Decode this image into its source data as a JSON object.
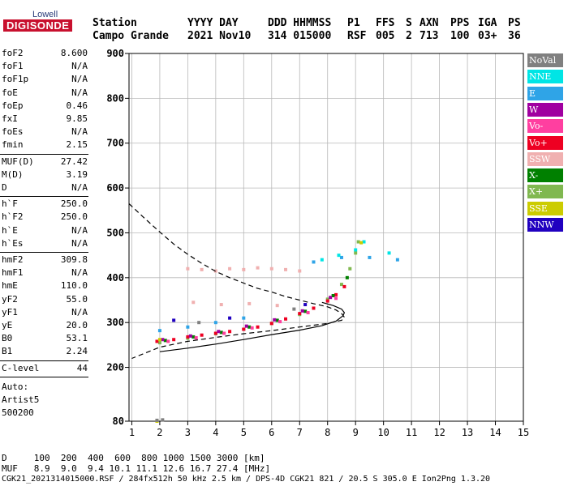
{
  "logo": {
    "top": "Lowell",
    "main": "DIGISONDE"
  },
  "header": {
    "labels": [
      "Station",
      "YYYY DAY",
      "DDD HHMMSS",
      "P1",
      "FFS",
      "S",
      "AXN",
      "PPS",
      "IGA",
      "PS"
    ],
    "values": [
      "Campo Grande",
      "2021 Nov10",
      "314 015000",
      "RSF",
      "005",
      "2",
      "713",
      "100",
      "03+",
      "36"
    ]
  },
  "params": {
    "group1": [
      {
        "label": "foF2",
        "value": "8.600"
      },
      {
        "label": "foF1",
        "value": "N/A"
      },
      {
        "label": "foF1p",
        "value": "N/A"
      },
      {
        "label": "foE",
        "value": "N/A"
      },
      {
        "label": "foEp",
        "value": "0.46"
      },
      {
        "label": "fxI",
        "value": "9.85"
      },
      {
        "label": "foEs",
        "value": "N/A"
      },
      {
        "label": "fmin",
        "value": "2.15"
      }
    ],
    "group2": [
      {
        "label": "MUF(D)",
        "value": "27.42"
      },
      {
        "label": "M(D)",
        "value": "3.19"
      },
      {
        "label": "D",
        "value": "N/A"
      }
    ],
    "group3": [
      {
        "label": "h`F",
        "value": "250.0"
      },
      {
        "label": "h`F2",
        "value": "250.0"
      },
      {
        "label": "h`E",
        "value": "N/A"
      },
      {
        "label": "h`Es",
        "value": "N/A"
      }
    ],
    "group4": [
      {
        "label": "hmF2",
        "value": "309.8"
      },
      {
        "label": "hmF1",
        "value": "N/A"
      },
      {
        "label": "hmE",
        "value": "110.0"
      },
      {
        "label": "yF2",
        "value": "55.0"
      },
      {
        "label": "yF1",
        "value": "N/A"
      },
      {
        "label": "yE",
        "value": "20.0"
      },
      {
        "label": "B0",
        "value": "53.1"
      },
      {
        "label": "B1",
        "value": "2.24"
      }
    ],
    "clevel": {
      "label": "C-level",
      "value": "44"
    },
    "auto": [
      "Auto:",
      "Artist5",
      "500200"
    ]
  },
  "legend": [
    {
      "label": "NoVal",
      "color": "#808080"
    },
    {
      "label": "NNE",
      "color": "#00e5e5"
    },
    {
      "label": "E",
      "color": "#2fa4e7"
    },
    {
      "label": "W",
      "color": "#a000a0"
    },
    {
      "label": "Vo-",
      "color": "#ff3fa0"
    },
    {
      "label": "Vo+",
      "color": "#ee0022"
    },
    {
      "label": "SSW",
      "color": "#f0b0b0"
    },
    {
      "label": "X-",
      "color": "#008000"
    },
    {
      "label": "X+",
      "color": "#80b850"
    },
    {
      "label": "SSE",
      "color": "#cccc00"
    },
    {
      "label": "NNW",
      "color": "#2000c0"
    }
  ],
  "footer": {
    "d_row": "D     100  200  400  600  800 1000 1500 3000 [km]",
    "muf_row": "MUF   8.9  9.0  9.4 10.1 11.1 12.6 16.7 27.4 [MHz]",
    "file_row": "CGK21_2021314015000.RSF / 284fx512h 50 kHz 2.5 km / DPS-4D CGK21 821 / 20.5 S 305.0 E Ion2Png 1.3.20"
  },
  "chart_data": {
    "type": "scatter",
    "xlim": [
      0.9,
      15
    ],
    "ylim": [
      80,
      900
    ],
    "x_ticks": [
      1,
      2,
      3,
      4,
      5,
      6,
      7,
      8,
      9,
      10,
      11,
      12,
      13,
      14,
      15
    ],
    "y_ticks": [
      80,
      200,
      300,
      400,
      500,
      600,
      700,
      800,
      900
    ],
    "grid": true,
    "legend_position": "right",
    "series": [
      {
        "name": "X+",
        "color": "#80b850",
        "x": [
          2.0,
          3.0,
          4.0,
          5.0,
          6.0,
          7.0,
          7.5,
          8.0,
          8.5,
          8.8,
          9.0,
          9.1
        ],
        "y": [
          255,
          265,
          275,
          285,
          298,
          318,
          332,
          352,
          385,
          420,
          455,
          480
        ]
      },
      {
        "name": "Vo+",
        "color": "#ee0022",
        "x": [
          1.9,
          2.5,
          3.0,
          3.5,
          4.0,
          4.5,
          5.0,
          5.5,
          6.0,
          6.5,
          7.0,
          7.5,
          8.0,
          8.3,
          8.6
        ],
        "y": [
          258,
          262,
          268,
          272,
          276,
          280,
          285,
          290,
          298,
          308,
          320,
          332,
          348,
          362,
          380
        ]
      },
      {
        "name": "X-",
        "color": "#008000",
        "x": [
          2.2,
          3.2,
          4.2,
          5.2,
          6.2,
          7.2,
          8.2,
          8.7
        ],
        "y": [
          260,
          268,
          278,
          290,
          305,
          325,
          360,
          400
        ]
      },
      {
        "name": "W",
        "color": "#a000a0",
        "x": [
          2.1,
          3.1,
          4.1,
          5.1,
          6.1,
          7.1,
          8.1
        ],
        "y": [
          262,
          270,
          280,
          292,
          306,
          326,
          356
        ]
      },
      {
        "name": "Vo-",
        "color": "#ff3fa0",
        "x": [
          2.3,
          3.3,
          4.3,
          5.3,
          6.3,
          7.3,
          8.3
        ],
        "y": [
          258,
          266,
          276,
          288,
          302,
          322,
          354
        ]
      },
      {
        "name": "E",
        "color": "#2fa4e7",
        "x": [
          2.0,
          3.0,
          4.0,
          5.0,
          7.5,
          8.5,
          9.5,
          10.5
        ],
        "y": [
          282,
          290,
          300,
          310,
          435,
          445,
          445,
          440
        ]
      },
      {
        "name": "NNE",
        "color": "#00e5e5",
        "x": [
          7.8,
          8.4,
          9.0,
          9.3,
          10.2
        ],
        "y": [
          440,
          450,
          462,
          480,
          455
        ]
      },
      {
        "name": "SSW",
        "color": "#f0b0b0",
        "x": [
          3.0,
          3.5,
          4.0,
          4.5,
          5.0,
          5.5,
          6.0,
          6.5,
          7.0,
          3.2,
          4.2,
          5.2,
          6.2
        ],
        "y": [
          420,
          418,
          415,
          420,
          418,
          422,
          420,
          418,
          415,
          345,
          340,
          342,
          338
        ]
      },
      {
        "name": "SSE",
        "color": "#cccc00",
        "x": [
          2.0,
          1.9,
          9.2
        ],
        "y": [
          262,
          80,
          478
        ]
      },
      {
        "name": "NNW",
        "color": "#2000c0",
        "x": [
          2.5,
          4.5,
          7.2
        ],
        "y": [
          305,
          310,
          340
        ]
      },
      {
        "name": "NoVal",
        "color": "#808080",
        "x": [
          1.9,
          2.1,
          3.4,
          6.8
        ],
        "y": [
          82,
          83,
          300,
          330
        ]
      }
    ],
    "profile_curve": {
      "x": [
        2.0,
        3.0,
        4.0,
        5.0,
        6.0,
        7.0,
        7.8,
        8.3,
        8.55,
        8.6,
        8.5,
        8.2,
        7.8
      ],
      "y": [
        235,
        243,
        252,
        262,
        273,
        283,
        293,
        303,
        315,
        322,
        330,
        338,
        345
      ]
    },
    "dashed_curve": {
      "x": [
        0.9,
        1.5,
        2.0,
        2.5,
        3.0,
        3.5,
        4.0,
        4.5,
        5.0,
        5.5,
        6.0,
        6.5,
        7.0,
        7.5,
        8.0,
        8.3,
        8.5,
        8.6,
        8.5,
        8.0,
        7.0,
        6.0,
        5.0,
        4.0,
        3.0,
        2.0,
        1.0
      ],
      "y": [
        565,
        530,
        502,
        475,
        452,
        432,
        414,
        400,
        388,
        376,
        368,
        358,
        350,
        342,
        335,
        328,
        320,
        312,
        305,
        298,
        290,
        282,
        275,
        267,
        258,
        245,
        220
      ]
    }
  }
}
